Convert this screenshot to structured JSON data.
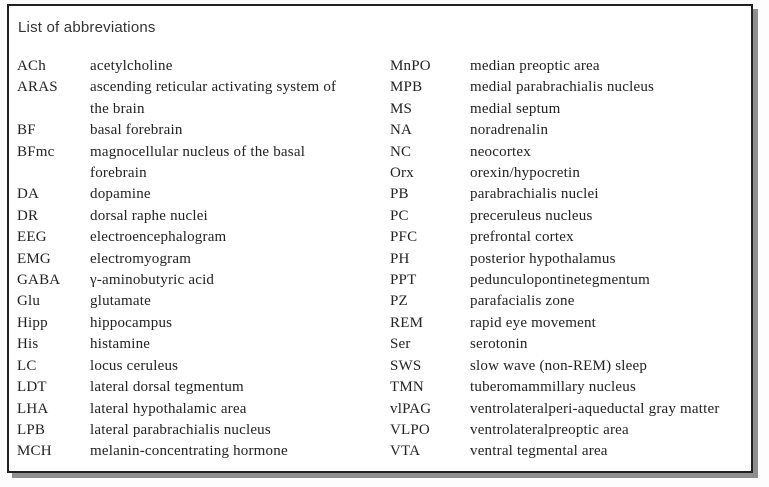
{
  "title": "List of abbreviations",
  "colors": {
    "page_background": "#fdfdfd",
    "box_background": "#ffffff",
    "border": "#212121",
    "shadow": "#8f8f8f",
    "text": "#222222"
  },
  "columns": {
    "left": [
      {
        "abbr": "ACh",
        "def": "acetylcholine"
      },
      {
        "abbr": "ARAS",
        "def": "ascending reticular activating system of\nthe brain"
      },
      {
        "abbr": "BF",
        "def": "basal forebrain"
      },
      {
        "abbr": "BFmc",
        "def": "magnocellular nucleus of the basal\nforebrain"
      },
      {
        "abbr": "DA",
        "def": "dopamine"
      },
      {
        "abbr": "DR",
        "def": "dorsal raphe nuclei"
      },
      {
        "abbr": "EEG",
        "def": "electroencephalogram"
      },
      {
        "abbr": "EMG",
        "def": "electromyogram"
      },
      {
        "abbr": "GABA",
        "def": "γ-aminobutyric acid"
      },
      {
        "abbr": "Glu",
        "def": "glutamate"
      },
      {
        "abbr": "Hipp",
        "def": "hippocampus"
      },
      {
        "abbr": "His",
        "def": "histamine"
      },
      {
        "abbr": "LC",
        "def": "locus ceruleus"
      },
      {
        "abbr": "LDT",
        "def": "lateral dorsal tegmentum"
      },
      {
        "abbr": "LHA",
        "def": "lateral hypothalamic area"
      },
      {
        "abbr": "LPB",
        "def": "lateral parabrachialis nucleus"
      },
      {
        "abbr": "MCH",
        "def": "melanin-concentrating hormone"
      }
    ],
    "right": [
      {
        "abbr": "MnPO",
        "def": "median preoptic area"
      },
      {
        "abbr": "MPB",
        "def": "medial parabrachialis nucleus"
      },
      {
        "abbr": "MS",
        "def": "medial septum"
      },
      {
        "abbr": "NA",
        "def": "noradrenalin"
      },
      {
        "abbr": "NC",
        "def": "neocortex"
      },
      {
        "abbr": "Orx",
        "def": "orexin/hypocretin"
      },
      {
        "abbr": "PB",
        "def": "parabrachialis nuclei"
      },
      {
        "abbr": "PC",
        "def": "preceruleus nucleus"
      },
      {
        "abbr": "PFC",
        "def": "prefrontal cortex"
      },
      {
        "abbr": "PH",
        "def": "posterior hypothalamus"
      },
      {
        "abbr": "PPT",
        "def": "pedunculopontinetegmentum"
      },
      {
        "abbr": "PZ",
        "def": "parafacialis zone"
      },
      {
        "abbr": "REM",
        "def": "rapid eye movement"
      },
      {
        "abbr": "Ser",
        "def": "serotonin"
      },
      {
        "abbr": "SWS",
        "def": "slow wave (non-REM) sleep"
      },
      {
        "abbr": "TMN",
        "def": "tuberomammillary nucleus"
      },
      {
        "abbr": "vlPAG",
        "def": "ventrolateralperi-aqueductal gray matter"
      },
      {
        "abbr": "VLPO",
        "def": "ventrolateralpreoptic area"
      },
      {
        "abbr": "VTA",
        "def": "ventral tegmental area"
      }
    ]
  }
}
